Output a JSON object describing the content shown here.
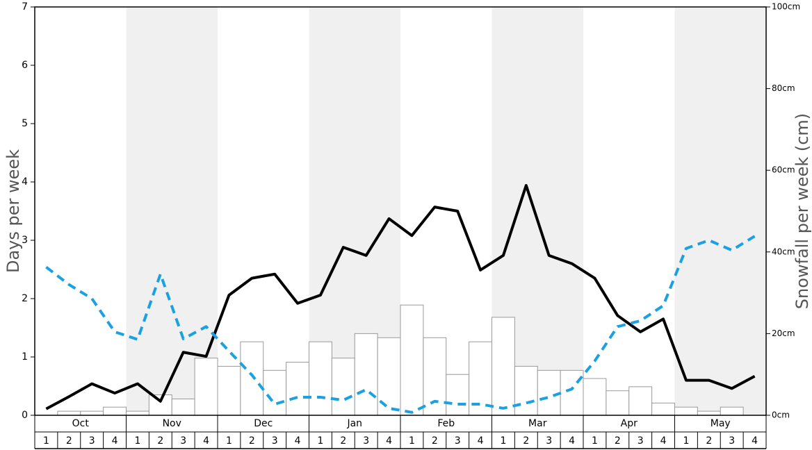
{
  "chart_data": {
    "type": "combo",
    "ylabel": "Days per week",
    "y2label": "Snowfall per week (cm)",
    "groups": [
      "Oct",
      "Nov",
      "Dec",
      "Jan",
      "Feb",
      "Mar",
      "Apr",
      "May"
    ],
    "categories": [
      "1",
      "2",
      "3",
      "4",
      "1",
      "2",
      "3",
      "4",
      "1",
      "2",
      "3",
      "4",
      "1",
      "2",
      "3",
      "4",
      "1",
      "2",
      "3",
      "4",
      "1",
      "2",
      "3",
      "4",
      "1",
      "2",
      "3",
      "4",
      "1",
      "2",
      "3",
      "4"
    ],
    "ylim": [
      0,
      7
    ],
    "yticks": [
      0,
      1,
      2,
      3,
      4,
      5,
      6,
      7
    ],
    "y2lim": [
      0,
      100
    ],
    "y2ticks": [
      {
        "value": 0,
        "label": "0cm"
      },
      {
        "value": 20,
        "label": "20cm"
      },
      {
        "value": 40,
        "label": "40cm"
      },
      {
        "value": 60,
        "label": "60cm"
      },
      {
        "value": 80,
        "label": "80cm"
      },
      {
        "value": 100,
        "label": "100cm"
      }
    ],
    "shade_color": "#f0f0f0",
    "series": [
      {
        "type": "bar",
        "axis": "y2",
        "color": "#ffffff",
        "values": [
          0,
          1,
          1,
          2,
          1,
          5,
          4,
          14,
          12,
          18,
          11,
          13,
          18,
          14,
          20,
          19,
          27,
          19,
          10,
          18,
          24,
          12,
          11,
          11,
          9,
          6,
          7,
          3,
          2,
          1,
          2,
          0
        ]
      },
      {
        "type": "line",
        "color": "#000000",
        "values": [
          0.11,
          0.32,
          0.54,
          0.38,
          0.54,
          0.24,
          1.08,
          1.01,
          2.06,
          2.35,
          2.42,
          1.92,
          2.06,
          2.88,
          2.74,
          3.37,
          3.08,
          3.57,
          3.5,
          2.49,
          2.74,
          3.94,
          2.74,
          2.6,
          2.35,
          1.71,
          1.43,
          1.65,
          0.6,
          0.6,
          0.46,
          0.67
        ]
      },
      {
        "type": "line",
        "dashed": true,
        "color": "#1ba1e2",
        "values": [
          2.54,
          2.24,
          2.0,
          1.43,
          1.3,
          2.42,
          1.31,
          1.52,
          1.1,
          0.69,
          0.19,
          0.31,
          0.31,
          0.26,
          0.44,
          0.12,
          0.05,
          0.24,
          0.19,
          0.19,
          0.12,
          0.21,
          0.31,
          0.45,
          0.93,
          1.52,
          1.62,
          1.88,
          2.86,
          3.0,
          2.83,
          3.07
        ]
      }
    ]
  }
}
